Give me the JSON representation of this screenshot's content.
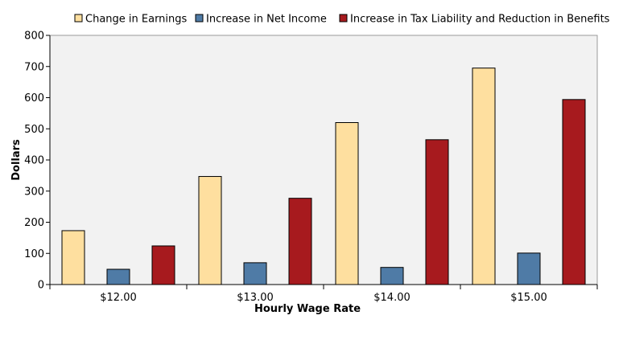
{
  "chart_data": {
    "type": "bar",
    "title": "",
    "xlabel": "Hourly Wage Rate",
    "ylabel": "Dollars",
    "ylim": [
      0,
      800
    ],
    "yticks": [
      0,
      100,
      200,
      300,
      400,
      500,
      600,
      700,
      800
    ],
    "categories": [
      "$12.00",
      "$13.00",
      "$14.00",
      "$15.00"
    ],
    "series": [
      {
        "name": "Change in Earnings",
        "color": "#FEDF9F",
        "values": [
          173,
          347,
          520,
          695
        ]
      },
      {
        "name": "Increase in Net Income",
        "color": "#4F7BA6",
        "values": [
          49,
          70,
          55,
          101
        ]
      },
      {
        "name": "Increase in Tax Liability and Reduction in Benefits",
        "color": "#A71A1E",
        "values": [
          124,
          277,
          465,
          594
        ]
      }
    ],
    "legend_position": "top",
    "grid": false,
    "plot_background": "#F2F2F2"
  }
}
